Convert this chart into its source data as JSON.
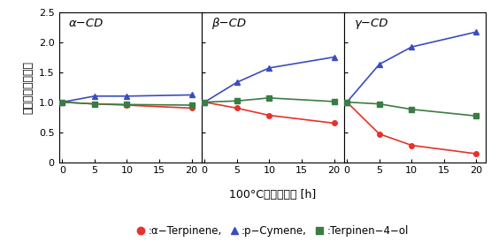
{
  "x": [
    0,
    5,
    10,
    20
  ],
  "panels": [
    {
      "title": "α−CD",
      "alpha_terpinene": [
        1.0,
        0.97,
        0.95,
        0.9
      ],
      "p_cymene": [
        1.0,
        1.1,
        1.1,
        1.12
      ],
      "terpinen4ol": [
        1.0,
        0.97,
        0.96,
        0.95
      ]
    },
    {
      "title": "β−CD",
      "alpha_terpinene": [
        1.0,
        0.9,
        0.78,
        0.65
      ],
      "p_cymene": [
        1.0,
        1.33,
        1.57,
        1.75
      ],
      "terpinen4ol": [
        1.0,
        1.02,
        1.07,
        1.01
      ]
    },
    {
      "title": "γ−CD",
      "alpha_terpinene": [
        1.0,
        0.47,
        0.28,
        0.14
      ],
      "p_cymene": [
        1.0,
        1.63,
        1.92,
        2.17
      ],
      "terpinen4ol": [
        1.0,
        0.97,
        0.88,
        0.77
      ]
    }
  ],
  "color_red": "#e8312a",
  "color_blue": "#3b4cc0",
  "color_green": "#3a7d44",
  "xlabel": "100°Cの加熱時間 [h]",
  "ylabel": "粉末中成分の変化",
  "ylim": [
    0,
    2.5
  ],
  "yticks": [
    0,
    0.5,
    1.0,
    1.5,
    2.0,
    2.5
  ],
  "xticks": [
    0,
    5,
    10,
    15,
    20
  ],
  "legend_labels": [
    "α−Terpinene",
    "p−Cymene",
    "Terpinen−4−ol"
  ]
}
